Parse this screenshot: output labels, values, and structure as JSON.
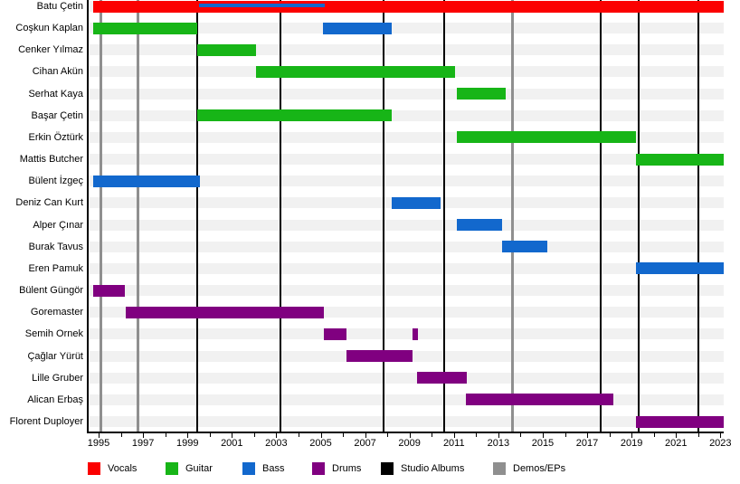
{
  "chart_data": {
    "type": "bar",
    "subtype": "band-member-timeline-gantt",
    "title": "",
    "xlabel": "",
    "ylabel": "",
    "xlim": [
      1994.55,
      2023.15
    ],
    "x_tick_labeled_years": [
      1995,
      1997,
      1999,
      2001,
      2003,
      2005,
      2007,
      2009,
      2011,
      2013,
      2015,
      2017,
      2019,
      2021,
      2023
    ],
    "x_tick_minor_every": 1,
    "grid": false,
    "legend_position": "bottom",
    "role_colors": {
      "vocals": "#fb0000",
      "guitar": "#17b517",
      "bass": "#1268cd",
      "drums": "#800080"
    },
    "event_line_colors": {
      "studio_albums": "#000000",
      "demos_eps": "#8f8f8f"
    },
    "event_lines": {
      "studio_albums": [
        1999.45,
        2003.2,
        2007.85,
        2010.55,
        2017.6,
        2019.3,
        2022.0
      ],
      "demos_eps": [
        1995.1,
        1996.75,
        2013.65
      ]
    },
    "members": [
      {
        "name": "Batu Çetin",
        "bars": [
          {
            "role": "vocals",
            "start": 1994.75,
            "end": 2023.15
          },
          {
            "role": "bass",
            "start": 1999.5,
            "end": 2005.2,
            "thin": true
          }
        ]
      },
      {
        "name": "Coşkun Kaplan",
        "bars": [
          {
            "role": "guitar",
            "start": 1994.75,
            "end": 1999.45
          },
          {
            "role": "bass",
            "start": 2005.1,
            "end": 2008.2
          }
        ]
      },
      {
        "name": "Cenker Yılmaz",
        "bars": [
          {
            "role": "guitar",
            "start": 1999.45,
            "end": 2002.1
          }
        ]
      },
      {
        "name": "Cihan Akün",
        "bars": [
          {
            "role": "guitar",
            "start": 2002.1,
            "end": 2011.05
          }
        ]
      },
      {
        "name": "Serhat Kaya",
        "bars": [
          {
            "role": "guitar",
            "start": 2011.15,
            "end": 2013.35
          }
        ]
      },
      {
        "name": "Başar Çetin",
        "bars": [
          {
            "role": "guitar",
            "start": 1999.45,
            "end": 2008.2
          }
        ]
      },
      {
        "name": "Erkin Öztürk",
        "bars": [
          {
            "role": "guitar",
            "start": 2011.15,
            "end": 2019.2
          }
        ]
      },
      {
        "name": "Mattis Butcher",
        "bars": [
          {
            "role": "guitar",
            "start": 2019.2,
            "end": 2023.15
          }
        ]
      },
      {
        "name": "Bülent İzgeç",
        "bars": [
          {
            "role": "bass",
            "start": 1994.75,
            "end": 1999.55
          }
        ]
      },
      {
        "name": "Deniz Can Kurt",
        "bars": [
          {
            "role": "bass",
            "start": 2008.2,
            "end": 2010.4
          }
        ]
      },
      {
        "name": "Alper Çınar",
        "bars": [
          {
            "role": "bass",
            "start": 2011.15,
            "end": 2013.15
          }
        ]
      },
      {
        "name": "Burak Tavus",
        "bars": [
          {
            "role": "bass",
            "start": 2013.15,
            "end": 2015.2
          }
        ]
      },
      {
        "name": "Eren Pamuk",
        "bars": [
          {
            "role": "bass",
            "start": 2019.2,
            "end": 2023.15
          }
        ]
      },
      {
        "name": "Bülent Güngör",
        "bars": [
          {
            "role": "drums",
            "start": 1994.75,
            "end": 1996.2
          }
        ]
      },
      {
        "name": "Goremaster",
        "bars": [
          {
            "role": "drums",
            "start": 1996.2,
            "end": 2005.15
          }
        ]
      },
      {
        "name": "Semih Ornek",
        "bars": [
          {
            "role": "drums",
            "start": 2005.15,
            "end": 2006.15
          },
          {
            "role": "drums",
            "start": 2009.15,
            "end": 2009.4
          }
        ]
      },
      {
        "name": "Çağlar Yürüt",
        "bars": [
          {
            "role": "drums",
            "start": 2006.15,
            "end": 2009.15
          }
        ]
      },
      {
        "name": "Lille Gruber",
        "bars": [
          {
            "role": "drums",
            "start": 2009.35,
            "end": 2011.6
          }
        ]
      },
      {
        "name": "Alican Erbaş",
        "bars": [
          {
            "role": "drums",
            "start": 2011.55,
            "end": 2018.2
          }
        ]
      },
      {
        "name": "Florent Duployer",
        "bars": [
          {
            "role": "drums",
            "start": 2019.2,
            "end": 2023.15
          }
        ]
      }
    ],
    "legend": [
      {
        "key": "vocals",
        "label": "Vocals",
        "x": 97
      },
      {
        "key": "guitar",
        "label": "Guitar",
        "x": 183
      },
      {
        "key": "bass",
        "label": "Bass",
        "x": 268
      },
      {
        "key": "drums",
        "label": "Drums",
        "x": 345
      },
      {
        "key": "studio_albums",
        "label": "Studio Albums",
        "x": 421
      },
      {
        "key": "demos_eps",
        "label": "Demos/EPs",
        "x": 545
      }
    ]
  }
}
